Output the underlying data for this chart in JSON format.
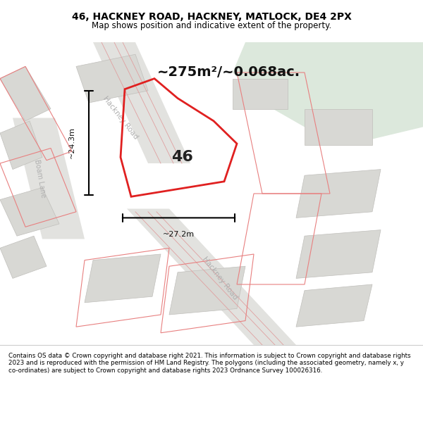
{
  "title_line1": "46, HACKNEY ROAD, HACKNEY, MATLOCK, DE4 2PX",
  "title_line2": "Map shows position and indicative extent of the property.",
  "area_text": "~275m²/~0.068ac.",
  "label_46": "46",
  "dim_vertical": "~24.3m",
  "dim_horizontal": "~27.2m",
  "road_label_1": "Hackney Road",
  "road_label_2": "Hackney Road",
  "road_label_3": "Boam Lane",
  "footer_text": "Contains OS data © Crown copyright and database right 2021. This information is subject to Crown copyright and database rights 2023 and is reproduced with the permission of HM Land Registry. The polygons (including the associated geometry, namely x, y co-ordinates) are subject to Crown copyright and database rights 2023 Ordnance Survey 100026316.",
  "bg_color": "#f0efed",
  "map_bg": "#f0efed",
  "road_fill": "#e8e8e8",
  "road_stroke": "#d0cfc9",
  "red_stroke": "#e02020",
  "green_area": "#dce8dc",
  "footer_bg": "#ffffff",
  "title_bg": "#ffffff",
  "figsize": [
    6.0,
    6.25
  ],
  "dpi": 100
}
